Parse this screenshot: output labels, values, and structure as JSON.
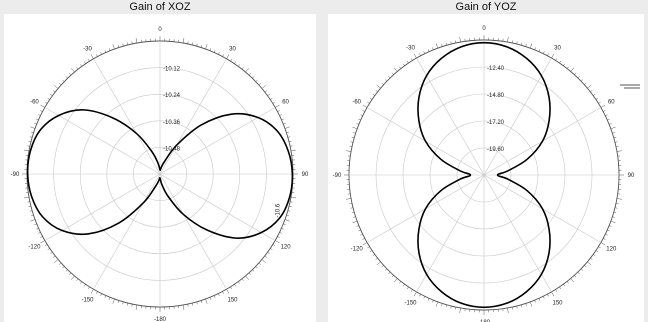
{
  "chart_data": [
    {
      "type": "polar-line",
      "title": "Gain of XOZ",
      "angle_ticks": [
        "0",
        "30",
        "60",
        "90",
        "120",
        "150",
        "-180",
        "-150",
        "-120",
        "-90",
        "-60",
        "-30"
      ],
      "ring_labels": [
        "-10.12",
        "-10.24",
        "-10.36",
        "-10.48"
      ],
      "edge_label": "-10.6",
      "series": [
        {
          "theta_deg": [
            0,
            10,
            20,
            30,
            40,
            50,
            60,
            70,
            80,
            90,
            100,
            110,
            120,
            130,
            140,
            150,
            160,
            170,
            180,
            190,
            200,
            210,
            220,
            230,
            240,
            250,
            260,
            270,
            280,
            290,
            300,
            310,
            320,
            330,
            340,
            350
          ],
          "r_frac": [
            0.03,
            0.05,
            0.1,
            0.25,
            0.48,
            0.7,
            0.85,
            0.94,
            0.98,
            0.995,
            0.99,
            0.96,
            0.88,
            0.75,
            0.55,
            0.35,
            0.18,
            0.08,
            0.03,
            0.05,
            0.1,
            0.25,
            0.48,
            0.7,
            0.85,
            0.94,
            0.98,
            0.995,
            0.99,
            0.96,
            0.88,
            0.75,
            0.55,
            0.35,
            0.18,
            0.08
          ]
        }
      ]
    },
    {
      "type": "polar-line",
      "title": "Gain of YOZ",
      "angle_ticks": [
        "0",
        "30",
        "60",
        "90",
        "120",
        "150",
        "-180",
        "-150",
        "-120",
        "-90",
        "-60",
        "-30"
      ],
      "ring_labels": [
        "-12.40",
        "-14.80",
        "-17.20",
        "-19.60"
      ],
      "series": [
        {
          "theta_deg": [
            0,
            10,
            20,
            30,
            40,
            50,
            60,
            70,
            80,
            90,
            100,
            110,
            120,
            130,
            140,
            150,
            160,
            170,
            180,
            190,
            200,
            210,
            220,
            230,
            240,
            250,
            260,
            270,
            280,
            290,
            300,
            310,
            320,
            330,
            340,
            350
          ],
          "r_frac": [
            0.98,
            0.965,
            0.92,
            0.85,
            0.75,
            0.63,
            0.5,
            0.34,
            0.18,
            0.1,
            0.18,
            0.34,
            0.5,
            0.63,
            0.75,
            0.85,
            0.92,
            0.965,
            0.98,
            0.965,
            0.92,
            0.85,
            0.75,
            0.63,
            0.5,
            0.34,
            0.18,
            0.1,
            0.18,
            0.34,
            0.5,
            0.63,
            0.75,
            0.85,
            0.92,
            0.965
          ]
        }
      ]
    }
  ],
  "colors": {
    "background": "#ececec",
    "panel": "#ffffff",
    "grid": "#c8c8c8",
    "curve": "#000000",
    "frame": "#555555"
  }
}
